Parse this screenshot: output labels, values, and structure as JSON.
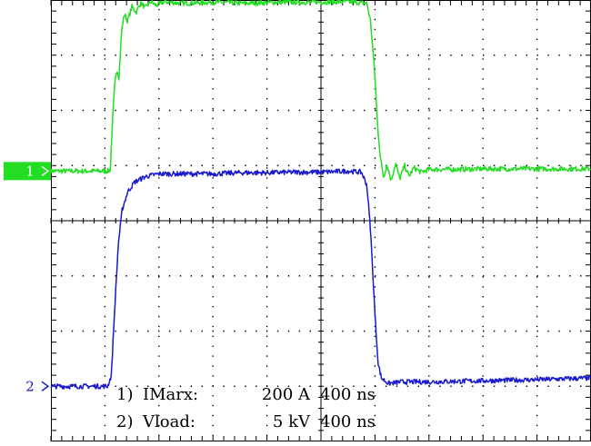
{
  "chart_data": {
    "type": "line",
    "grid": true,
    "divisions": {
      "x": 10,
      "y": 8
    },
    "x_units_per_div": "400 ns",
    "xlim_div": [
      0,
      10
    ],
    "ylim_div": [
      -4,
      4
    ],
    "channels": [
      {
        "marker": "1",
        "color": "#22dd22",
        "marker_bg": "#22dd22",
        "label_index": "1)",
        "label_name": "IMarx:",
        "label_scale": "200 A",
        "label_time": "400 ns",
        "offset_div": 0.9,
        "points": [
          [
            0.0,
            0.0
          ],
          [
            1.05,
            0.0
          ],
          [
            1.1,
            0.02
          ],
          [
            1.13,
            0.7
          ],
          [
            1.18,
            1.55
          ],
          [
            1.22,
            1.85
          ],
          [
            1.26,
            1.7
          ],
          [
            1.31,
            2.55
          ],
          [
            1.36,
            2.85
          ],
          [
            1.42,
            2.72
          ],
          [
            1.5,
            2.98
          ],
          [
            1.58,
            2.88
          ],
          [
            1.66,
            3.05
          ],
          [
            1.75,
            2.96
          ],
          [
            1.85,
            3.07
          ],
          [
            1.95,
            3.0
          ],
          [
            2.1,
            3.07
          ],
          [
            2.4,
            3.04
          ],
          [
            3.0,
            3.06
          ],
          [
            3.6,
            3.04
          ],
          [
            4.2,
            3.06
          ],
          [
            4.8,
            3.06
          ],
          [
            5.5,
            3.07
          ],
          [
            5.85,
            3.04
          ],
          [
            5.92,
            2.7
          ],
          [
            6.0,
            1.7
          ],
          [
            6.05,
            0.8
          ],
          [
            6.1,
            0.25
          ],
          [
            6.16,
            -0.12
          ],
          [
            6.22,
            0.12
          ],
          [
            6.3,
            -0.17
          ],
          [
            6.38,
            0.14
          ],
          [
            6.46,
            -0.14
          ],
          [
            6.55,
            0.1
          ],
          [
            6.63,
            -0.1
          ],
          [
            6.72,
            0.06
          ],
          [
            6.85,
            -0.02
          ],
          [
            7.0,
            0.03
          ],
          [
            7.5,
            0.03
          ],
          [
            8.0,
            0.04
          ],
          [
            9.0,
            0.04
          ],
          [
            10.0,
            0.04
          ]
        ]
      },
      {
        "marker": "2",
        "color": "#1a1acc",
        "marker_bg": "#ffffff",
        "label_index": "2)",
        "label_name": "Vload:",
        "label_scale": "5 kV",
        "label_time": "400 ns",
        "offset_div": -3.0,
        "points": [
          [
            0.0,
            0.0
          ],
          [
            1.05,
            0.0
          ],
          [
            1.12,
            0.2
          ],
          [
            1.18,
            1.4
          ],
          [
            1.25,
            2.6
          ],
          [
            1.32,
            3.2
          ],
          [
            1.42,
            3.52
          ],
          [
            1.55,
            3.7
          ],
          [
            1.75,
            3.8
          ],
          [
            2.0,
            3.85
          ],
          [
            2.5,
            3.85
          ],
          [
            3.0,
            3.85
          ],
          [
            3.5,
            3.87
          ],
          [
            4.0,
            3.87
          ],
          [
            4.5,
            3.88
          ],
          [
            5.0,
            3.88
          ],
          [
            5.5,
            3.9
          ],
          [
            5.75,
            3.88
          ],
          [
            5.85,
            3.65
          ],
          [
            5.92,
            2.8
          ],
          [
            6.0,
            1.3
          ],
          [
            6.06,
            0.4
          ],
          [
            6.12,
            0.15
          ],
          [
            6.25,
            0.05
          ],
          [
            6.5,
            0.08
          ],
          [
            7.0,
            0.08
          ],
          [
            8.0,
            0.1
          ],
          [
            9.0,
            0.12
          ],
          [
            10.0,
            0.15
          ]
        ]
      }
    ]
  }
}
